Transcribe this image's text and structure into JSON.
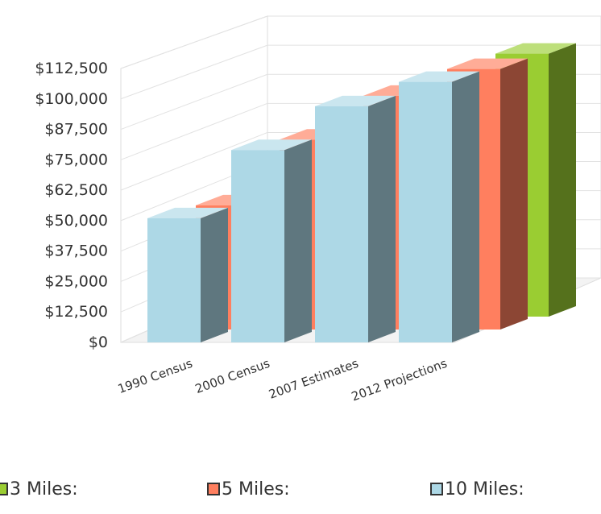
{
  "chart_data": {
    "type": "bar",
    "categories": [
      "1990 Census",
      "2000 Census",
      "2007 Estimates",
      "2012 Projections"
    ],
    "y_ticks": [
      "$0",
      "$12,500",
      "$25,000",
      "$37,500",
      "$50,000",
      "$62,500",
      "$75,000",
      "$87,500",
      "$100,000",
      "$112,500"
    ],
    "ylim": [
      0,
      112500
    ],
    "grid": true,
    "legend_position": "bottom",
    "series": [
      {
        "name": "3 Miles:",
        "color": "#9acd32",
        "values": [
          null,
          null,
          null,
          108000
        ]
      },
      {
        "name": "5 Miles:",
        "color": "#ff7f5f",
        "values": [
          51000,
          78000,
          96000,
          107000
        ]
      },
      {
        "name": "10 Miles:",
        "color": "#add8e6",
        "values": [
          51000,
          79000,
          97000,
          107000
        ]
      }
    ]
  }
}
